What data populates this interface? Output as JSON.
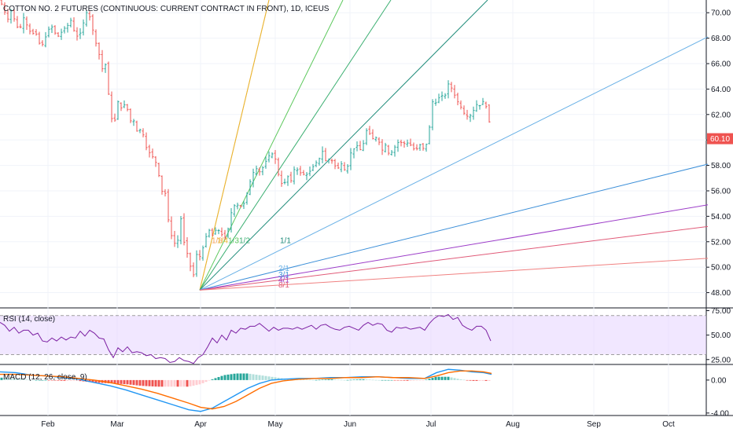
{
  "chart_data": [
    {
      "type": "candlestick",
      "title": "COTTON NO. 2 FUTURES (CONTINUOUS: CURRENT CONTRACT IN FRONT), 1D, ICEUS",
      "ylim": [
        46.8,
        71.0
      ],
      "y_ticks": [
        "48.00",
        "50.00",
        "52.00",
        "54.00",
        "56.00",
        "58.00",
        "60.00",
        "62.00",
        "64.00",
        "66.00",
        "68.00",
        "70.00"
      ],
      "last_price": "60.10",
      "last_price_value": 60.1,
      "x_ticks": [
        "Feb",
        "Mar",
        "Apr",
        "May",
        "Jun",
        "Jul",
        "Aug",
        "Sep",
        "Oct"
      ],
      "up_color": "#26a69a",
      "down_color": "#ef5350",
      "close_path": [
        [
          0,
          71.0
        ],
        [
          5,
          70.2
        ],
        [
          10,
          69.5
        ],
        [
          15,
          70.3
        ],
        [
          20,
          69.0
        ],
        [
          25,
          68.7
        ],
        [
          30,
          69.6
        ],
        [
          35,
          68.9
        ],
        [
          40,
          68.3
        ],
        [
          45,
          68.5
        ],
        [
          50,
          67.6
        ],
        [
          55,
          67.5
        ],
        [
          60,
          68.5
        ],
        [
          65,
          69.0
        ],
        [
          70,
          68.4
        ],
        [
          75,
          68.1
        ],
        [
          80,
          68.7
        ],
        [
          85,
          68.9
        ],
        [
          90,
          69.4
        ],
        [
          95,
          68.4
        ],
        [
          100,
          68.0
        ],
        [
          105,
          69.0
        ],
        [
          110,
          70.0
        ],
        [
          115,
          69.6
        ],
        [
          120,
          68.0
        ],
        [
          125,
          67.0
        ],
        [
          130,
          65.6
        ],
        [
          135,
          66.0
        ],
        [
          140,
          62.0
        ],
        [
          145,
          61.2
        ],
        [
          150,
          63.0
        ],
        [
          155,
          62.4
        ],
        [
          160,
          63.0
        ],
        [
          165,
          61.5
        ],
        [
          170,
          61.5
        ],
        [
          175,
          60.5
        ],
        [
          180,
          61.0
        ],
        [
          185,
          59.5
        ],
        [
          190,
          59.0
        ],
        [
          195,
          58.6
        ],
        [
          200,
          58.0
        ],
        [
          205,
          56.0
        ],
        [
          210,
          55.8
        ],
        [
          215,
          53.2
        ],
        [
          220,
          52.0
        ],
        [
          225,
          51.7
        ],
        [
          230,
          53.8
        ],
        [
          235,
          51.5
        ],
        [
          240,
          50.8
        ],
        [
          245,
          49.0
        ],
        [
          250,
          51.0
        ],
        [
          255,
          50.8
        ],
        [
          260,
          52.0
        ],
        [
          265,
          53.0
        ],
        [
          270,
          52.5
        ],
        [
          275,
          53.0
        ],
        [
          280,
          52.8
        ],
        [
          285,
          52.2
        ],
        [
          290,
          53.0
        ],
        [
          295,
          54.6
        ],
        [
          300,
          55.0
        ],
        [
          305,
          54.7
        ],
        [
          310,
          55.0
        ],
        [
          315,
          56.0
        ],
        [
          320,
          57.2
        ],
        [
          325,
          57.8
        ],
        [
          330,
          57.5
        ],
        [
          335,
          57.9
        ],
        [
          340,
          58.6
        ],
        [
          345,
          59.0
        ],
        [
          350,
          58.5
        ],
        [
          355,
          57.0
        ],
        [
          360,
          56.3
        ],
        [
          365,
          57.2
        ],
        [
          370,
          56.8
        ],
        [
          375,
          57.9
        ],
        [
          380,
          57.5
        ],
        [
          385,
          57.3
        ],
        [
          390,
          57.3
        ],
        [
          395,
          57.6
        ],
        [
          400,
          58.1
        ],
        [
          405,
          58.4
        ],
        [
          410,
          59.1
        ],
        [
          415,
          58.2
        ],
        [
          420,
          58.6
        ],
        [
          425,
          58.0
        ],
        [
          430,
          57.8
        ],
        [
          435,
          58.2
        ],
        [
          440,
          57.3
        ],
        [
          445,
          58.9
        ],
        [
          450,
          59.3
        ],
        [
          455,
          59.6
        ],
        [
          460,
          59.0
        ],
        [
          465,
          60.8
        ],
        [
          470,
          60.5
        ],
        [
          475,
          60.0
        ],
        [
          480,
          60.3
        ],
        [
          485,
          59.1
        ],
        [
          490,
          59.6
        ],
        [
          495,
          58.8
        ],
        [
          500,
          59.2
        ],
        [
          505,
          59.8
        ],
        [
          510,
          59.8
        ],
        [
          515,
          59.7
        ],
        [
          520,
          59.8
        ],
        [
          525,
          59.3
        ],
        [
          530,
          59.3
        ],
        [
          535,
          59.7
        ],
        [
          540,
          59.1
        ],
        [
          545,
          60.5
        ],
        [
          550,
          63.0
        ],
        [
          555,
          62.9
        ],
        [
          560,
          63.6
        ],
        [
          565,
          63.3
        ],
        [
          570,
          64.4
        ],
        [
          575,
          64.0
        ],
        [
          580,
          63.2
        ],
        [
          585,
          62.7
        ],
        [
          590,
          62.1
        ],
        [
          595,
          61.8
        ],
        [
          600,
          62.0
        ],
        [
          605,
          62.8
        ],
        [
          610,
          62.7
        ],
        [
          615,
          63.1
        ],
        [
          620,
          62.3
        ],
        [
          625,
          60.1
        ]
      ],
      "gann_fan": {
        "origin": {
          "x": 254,
          "y": 48.2
        },
        "color_note": "Gann fan drawn from the April low",
        "lines": [
          {
            "label": "1/8",
            "color": "#f7a35c",
            "end_x": 342,
            "end_y": 71.0,
            "label_x": 269,
            "label_y": 51.9
          },
          {
            "label": "1/4",
            "color": "#e8b830",
            "end_x": 342,
            "end_y": 71.0,
            "label_x": 276,
            "label_y": 51.9
          },
          {
            "label": "1/3",
            "color": "#5cc85c",
            "end_x": 436,
            "end_y": 71.0,
            "label_x": 290,
            "label_y": 51.9
          },
          {
            "label": "1/2",
            "color": "#3caf72",
            "end_x": 497,
            "end_y": 71.0,
            "label_x": 304,
            "label_y": 51.9
          },
          {
            "label": "1/1",
            "color": "#1f8c7a",
            "end_x": 620,
            "end_y": 71.0,
            "label_x": 356,
            "label_y": 51.9
          },
          {
            "label": "2/1",
            "color": "#6ab1e6",
            "end_x": 900,
            "end_y": 68.1,
            "label_x": 354,
            "label_y": 49.7
          },
          {
            "label": "3/1",
            "color": "#3c8fd8",
            "end_x": 900,
            "end_y": 58.1,
            "label_x": 354,
            "label_y": 49.2
          },
          {
            "label": "4/1",
            "color": "#9c3cc8",
            "end_x": 900,
            "end_y": 54.9,
            "label_x": 354,
            "label_y": 48.8
          },
          {
            "label": "8/1",
            "color": "#e05a78",
            "end_x": 900,
            "end_y": 53.2,
            "label_x": 354,
            "label_y": 48.4
          },
          {
            "label": "",
            "color": "#f08080",
            "end_x": 900,
            "end_y": 50.7,
            "label_x": 0,
            "label_y": 0
          }
        ]
      }
    },
    {
      "type": "line",
      "title": "RSI (14, close)",
      "ylim": [
        20,
        77
      ],
      "y_ticks": [
        "25.00",
        "50.00",
        "75.00"
      ],
      "band": [
        30,
        70
      ],
      "line_color": "#7b1fa2",
      "band_color": "#e5d4ff",
      "values_path": [
        [
          0,
          63
        ],
        [
          6,
          60
        ],
        [
          12,
          54
        ],
        [
          18,
          58
        ],
        [
          24,
          52
        ],
        [
          30,
          55
        ],
        [
          36,
          55
        ],
        [
          42,
          50
        ],
        [
          48,
          52
        ],
        [
          54,
          44
        ],
        [
          60,
          43
        ],
        [
          66,
          47
        ],
        [
          72,
          44
        ],
        [
          78,
          48
        ],
        [
          84,
          45
        ],
        [
          90,
          48
        ],
        [
          96,
          47
        ],
        [
          102,
          54
        ],
        [
          108,
          49
        ],
        [
          114,
          55
        ],
        [
          120,
          52
        ],
        [
          126,
          47
        ],
        [
          132,
          46
        ],
        [
          138,
          35
        ],
        [
          144,
          27
        ],
        [
          150,
          37
        ],
        [
          156,
          33
        ],
        [
          162,
          38
        ],
        [
          168,
          32
        ],
        [
          174,
          33
        ],
        [
          180,
          32
        ],
        [
          186,
          29
        ],
        [
          192,
          30
        ],
        [
          198,
          26
        ],
        [
          204,
          27
        ],
        [
          210,
          26
        ],
        [
          216,
          22
        ],
        [
          222,
          23
        ],
        [
          228,
          27
        ],
        [
          234,
          24
        ],
        [
          240,
          23
        ],
        [
          246,
          21
        ],
        [
          252,
          27
        ],
        [
          258,
          30
        ],
        [
          264,
          38
        ],
        [
          270,
          47
        ],
        [
          276,
          42
        ],
        [
          282,
          50
        ],
        [
          288,
          45
        ],
        [
          294,
          55
        ],
        [
          300,
          52
        ],
        [
          306,
          57
        ],
        [
          312,
          56
        ],
        [
          318,
          59
        ],
        [
          324,
          59
        ],
        [
          330,
          62
        ],
        [
          336,
          58
        ],
        [
          342,
          54
        ],
        [
          348,
          58
        ],
        [
          354,
          55
        ],
        [
          360,
          57
        ],
        [
          366,
          57
        ],
        [
          372,
          56
        ],
        [
          378,
          58
        ],
        [
          384,
          56
        ],
        [
          390,
          58
        ],
        [
          396,
          60
        ],
        [
          402,
          56
        ],
        [
          408,
          60
        ],
        [
          414,
          61
        ],
        [
          420,
          58
        ],
        [
          426,
          56
        ],
        [
          432,
          55
        ],
        [
          438,
          58
        ],
        [
          444,
          59
        ],
        [
          450,
          57
        ],
        [
          456,
          55
        ],
        [
          462,
          60
        ],
        [
          468,
          63
        ],
        [
          474,
          60
        ],
        [
          480,
          62
        ],
        [
          486,
          61
        ],
        [
          492,
          55
        ],
        [
          498,
          53
        ],
        [
          504,
          58
        ],
        [
          510,
          57
        ],
        [
          516,
          58
        ],
        [
          522,
          56
        ],
        [
          528,
          57
        ],
        [
          534,
          58
        ],
        [
          540,
          55
        ],
        [
          546,
          62
        ],
        [
          552,
          67
        ],
        [
          558,
          70
        ],
        [
          564,
          69
        ],
        [
          570,
          71
        ],
        [
          576,
          66
        ],
        [
          582,
          68
        ],
        [
          588,
          60
        ],
        [
          594,
          57
        ],
        [
          600,
          55
        ],
        [
          606,
          59
        ],
        [
          612,
          59
        ],
        [
          618,
          55
        ],
        [
          624,
          44
        ]
      ]
    },
    {
      "type": "bar",
      "title": "MACD (12, 26, close, 9)",
      "ylim": [
        -4.3,
        1.8
      ],
      "y_ticks": [
        "0.00",
        "-4.00"
      ],
      "macd_color": "#2196f3",
      "signal_color": "#ff6d00",
      "macd_path": [
        [
          0,
          1.0
        ],
        [
          20,
          0.9
        ],
        [
          40,
          0.6
        ],
        [
          60,
          0.5
        ],
        [
          80,
          0.3
        ],
        [
          100,
          0.1
        ],
        [
          120,
          -0.3
        ],
        [
          140,
          -0.7
        ],
        [
          160,
          -1.2
        ],
        [
          180,
          -1.8
        ],
        [
          200,
          -2.4
        ],
        [
          220,
          -3.0
        ],
        [
          240,
          -3.6
        ],
        [
          255,
          -3.8
        ],
        [
          270,
          -3.4
        ],
        [
          285,
          -2.6
        ],
        [
          300,
          -1.8
        ],
        [
          315,
          -1.0
        ],
        [
          330,
          -0.4
        ],
        [
          345,
          0.0
        ],
        [
          360,
          0.1
        ],
        [
          380,
          0.2
        ],
        [
          400,
          0.2
        ],
        [
          420,
          0.3
        ],
        [
          440,
          0.3
        ],
        [
          460,
          0.4
        ],
        [
          480,
          0.4
        ],
        [
          500,
          0.3
        ],
        [
          520,
          0.2
        ],
        [
          540,
          0.2
        ],
        [
          555,
          0.9
        ],
        [
          570,
          1.3
        ],
        [
          585,
          1.2
        ],
        [
          600,
          1.0
        ],
        [
          615,
          0.9
        ],
        [
          625,
          0.7
        ]
      ],
      "signal_path": [
        [
          0,
          0.7
        ],
        [
          20,
          0.7
        ],
        [
          40,
          0.6
        ],
        [
          60,
          0.5
        ],
        [
          80,
          0.4
        ],
        [
          100,
          0.2
        ],
        [
          120,
          0.0
        ],
        [
          140,
          -0.3
        ],
        [
          160,
          -0.7
        ],
        [
          180,
          -1.1
        ],
        [
          200,
          -1.6
        ],
        [
          220,
          -2.2
        ],
        [
          240,
          -2.8
        ],
        [
          255,
          -3.3
        ],
        [
          270,
          -3.5
        ],
        [
          285,
          -3.2
        ],
        [
          300,
          -2.6
        ],
        [
          315,
          -1.8
        ],
        [
          330,
          -1.0
        ],
        [
          345,
          -0.4
        ],
        [
          360,
          -0.1
        ],
        [
          380,
          0.1
        ],
        [
          400,
          0.2
        ],
        [
          420,
          0.2
        ],
        [
          440,
          0.3
        ],
        [
          460,
          0.3
        ],
        [
          480,
          0.4
        ],
        [
          500,
          0.3
        ],
        [
          520,
          0.3
        ],
        [
          540,
          0.2
        ],
        [
          555,
          0.5
        ],
        [
          570,
          0.9
        ],
        [
          585,
          1.1
        ],
        [
          600,
          1.1
        ],
        [
          615,
          1.0
        ],
        [
          625,
          0.8
        ]
      ]
    }
  ]
}
